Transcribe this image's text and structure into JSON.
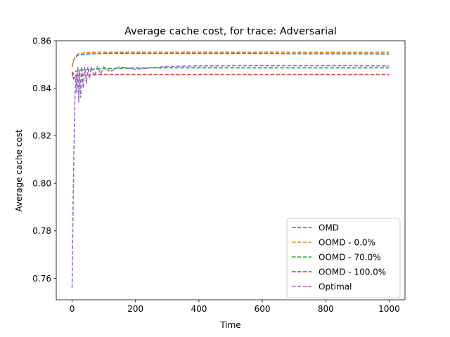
{
  "chart_data": {
    "type": "line",
    "title": "Average cache cost, for trace: Adversarial",
    "xlabel": "Time",
    "ylabel": "Average cache cost",
    "xlim": [
      -50,
      1050
    ],
    "ylim": [
      0.751,
      0.86
    ],
    "xticks": [
      0,
      200,
      400,
      600,
      800,
      1000
    ],
    "yticks": [
      0.76,
      0.78,
      0.8,
      0.82,
      0.84,
      0.86
    ],
    "ytick_labels": [
      "0.76",
      "0.78",
      "0.80",
      "0.82",
      "0.84",
      "0.86"
    ],
    "grid": false,
    "legend_position": "lower-right",
    "series": [
      {
        "name": "OMD",
        "color": "#1f77b4",
        "x": [
          0,
          5,
          10,
          20,
          40,
          60,
          100,
          200,
          300,
          400,
          500,
          600,
          700,
          800,
          900,
          1000
        ],
        "y": [
          0.849,
          0.852,
          0.853,
          0.854,
          0.8543,
          0.8545,
          0.8546,
          0.8546,
          0.8546,
          0.8546,
          0.8546,
          0.8546,
          0.8545,
          0.8545,
          0.8545,
          0.8544
        ]
      },
      {
        "name": "OOMD - 0.0%",
        "color": "#ff7f0e",
        "x": [
          0,
          5,
          10,
          20,
          40,
          60,
          100,
          200,
          300,
          400,
          500,
          600,
          700,
          800,
          900,
          1000
        ],
        "y": [
          0.8495,
          0.852,
          0.8535,
          0.8545,
          0.855,
          0.8552,
          0.8552,
          0.8552,
          0.8552,
          0.8552,
          0.8552,
          0.8552,
          0.8552,
          0.8552,
          0.8552,
          0.8552
        ]
      },
      {
        "name": "OOMD - 70.0%",
        "color": "#2ca02c",
        "x": [
          0,
          5,
          10,
          20,
          40,
          60,
          100,
          200,
          300,
          400,
          500,
          600,
          700,
          800,
          900,
          1000
        ],
        "y": [
          0.845,
          0.8465,
          0.847,
          0.8475,
          0.8478,
          0.848,
          0.8483,
          0.8485,
          0.8486,
          0.8486,
          0.8486,
          0.8486,
          0.8486,
          0.8486,
          0.8486,
          0.8486
        ]
      },
      {
        "name": "OOMD - 100.0%",
        "color": "#d62728",
        "x": [
          0,
          5,
          10,
          20,
          40,
          60,
          100,
          200,
          300,
          400,
          500,
          600,
          700,
          800,
          900,
          1000
        ],
        "y": [
          0.847,
          0.844,
          0.845,
          0.8455,
          0.8456,
          0.8457,
          0.8457,
          0.8457,
          0.8457,
          0.8457,
          0.8457,
          0.8457,
          0.8457,
          0.8457,
          0.8457,
          0.8457
        ]
      },
      {
        "name": "Optimal",
        "color": "#9467bd",
        "x": [
          0,
          3,
          6,
          9,
          12,
          15,
          18,
          21,
          24,
          27,
          30,
          35,
          40,
          45,
          50,
          55,
          60,
          70,
          80,
          90,
          100,
          120,
          150,
          200,
          300,
          400,
          500,
          600,
          700,
          800,
          900,
          1000
        ],
        "y": [
          0.756,
          0.79,
          0.815,
          0.836,
          0.846,
          0.838,
          0.849,
          0.834,
          0.848,
          0.836,
          0.849,
          0.84,
          0.849,
          0.842,
          0.849,
          0.844,
          0.849,
          0.845,
          0.849,
          0.846,
          0.849,
          0.847,
          0.849,
          0.848,
          0.8492,
          0.8494,
          0.8495,
          0.8495,
          0.8495,
          0.8495,
          0.8495,
          0.8494
        ]
      }
    ]
  }
}
